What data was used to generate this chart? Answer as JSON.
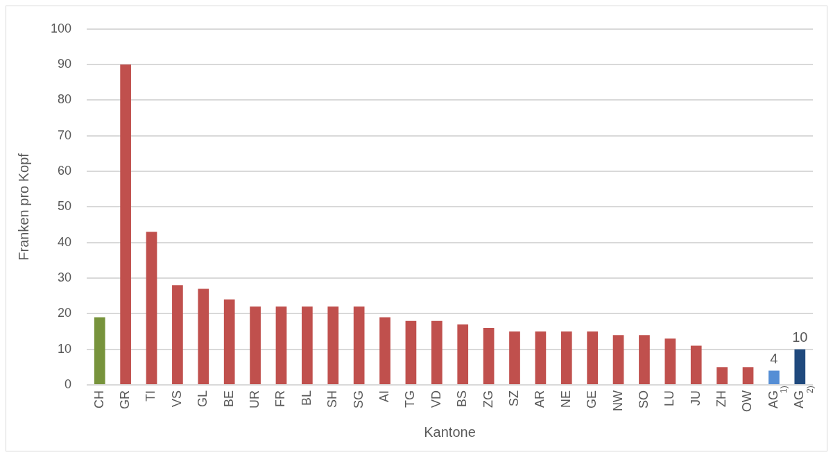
{
  "chart_data": {
    "type": "bar",
    "xlabel": "Kantone",
    "ylabel": "Franken pro Kopf",
    "categories": [
      "CH",
      "GR",
      "TI",
      "VS",
      "GL",
      "BE",
      "UR",
      "FR",
      "BL",
      "SH",
      "SG",
      "AI",
      "TG",
      "VD",
      "BS",
      "ZG",
      "SZ",
      "AR",
      "NE",
      "GE",
      "NW",
      "SO",
      "LU",
      "JU",
      "ZH",
      "OW",
      "AG$^{1)}$",
      "AG$^{2)}$"
    ],
    "values": [
      19,
      90,
      43,
      28,
      27,
      24,
      22,
      22,
      22,
      22,
      22,
      19,
      18,
      18,
      17,
      16,
      15,
      15,
      15,
      15,
      14,
      14,
      13,
      11,
      5,
      5,
      4,
      10
    ],
    "colors": [
      "#77933c",
      "#c0504d",
      "#c0504d",
      "#c0504d",
      "#c0504d",
      "#c0504d",
      "#c0504d",
      "#c0504d",
      "#c0504d",
      "#c0504d",
      "#c0504d",
      "#c0504d",
      "#c0504d",
      "#c0504d",
      "#c0504d",
      "#c0504d",
      "#c0504d",
      "#c0504d",
      "#c0504d",
      "#c0504d",
      "#c0504d",
      "#c0504d",
      "#c0504d",
      "#c0504d",
      "#c0504d",
      "#c0504d",
      "#558ed5",
      "#1f497d"
    ],
    "value_labels": [
      null,
      null,
      null,
      null,
      null,
      null,
      null,
      null,
      null,
      null,
      null,
      null,
      null,
      null,
      null,
      null,
      null,
      null,
      null,
      null,
      null,
      null,
      null,
      null,
      null,
      null,
      "4",
      "10"
    ],
    "ylim": [
      0,
      100
    ],
    "yticks": [
      0,
      10,
      20,
      30,
      40,
      50,
      60,
      70,
      80,
      90,
      100
    ],
    "grid": "y",
    "legend": false
  }
}
